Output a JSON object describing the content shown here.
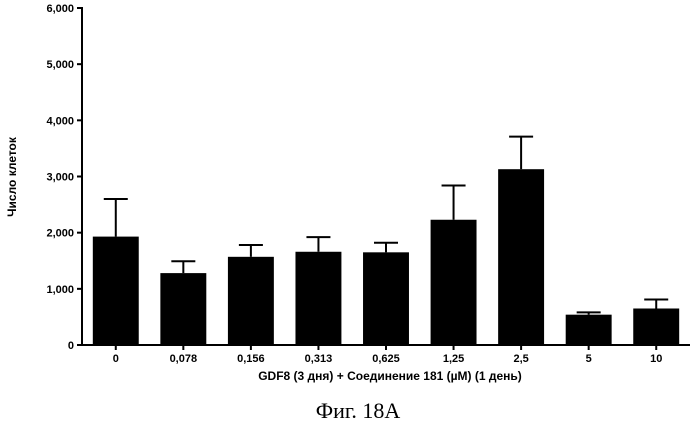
{
  "chart_data": {
    "type": "bar",
    "categories": [
      "0",
      "0,078",
      "0,156",
      "0,313",
      "0,625",
      "1,25",
      "2,5",
      "5",
      "10"
    ],
    "values": [
      1930,
      1280,
      1570,
      1660,
      1650,
      2230,
      3130,
      540,
      650
    ],
    "errors": [
      670,
      210,
      210,
      260,
      170,
      610,
      580,
      40,
      160
    ],
    "xlabel": "GDF8 (3 дня)  + Соединение 181 (µM) (1 день)",
    "ylabel": "Число клеток",
    "ylim": [
      0,
      6000
    ],
    "yticks": [
      0,
      1000,
      2000,
      3000,
      4000,
      5000,
      6000
    ],
    "ytick_labels": [
      "0",
      "1,000",
      "2,000",
      "3,000",
      "4,000",
      "5,000",
      "6,000"
    ],
    "grid": false,
    "bar_color": "#000000"
  },
  "figure_caption": "Фиг. 18A"
}
